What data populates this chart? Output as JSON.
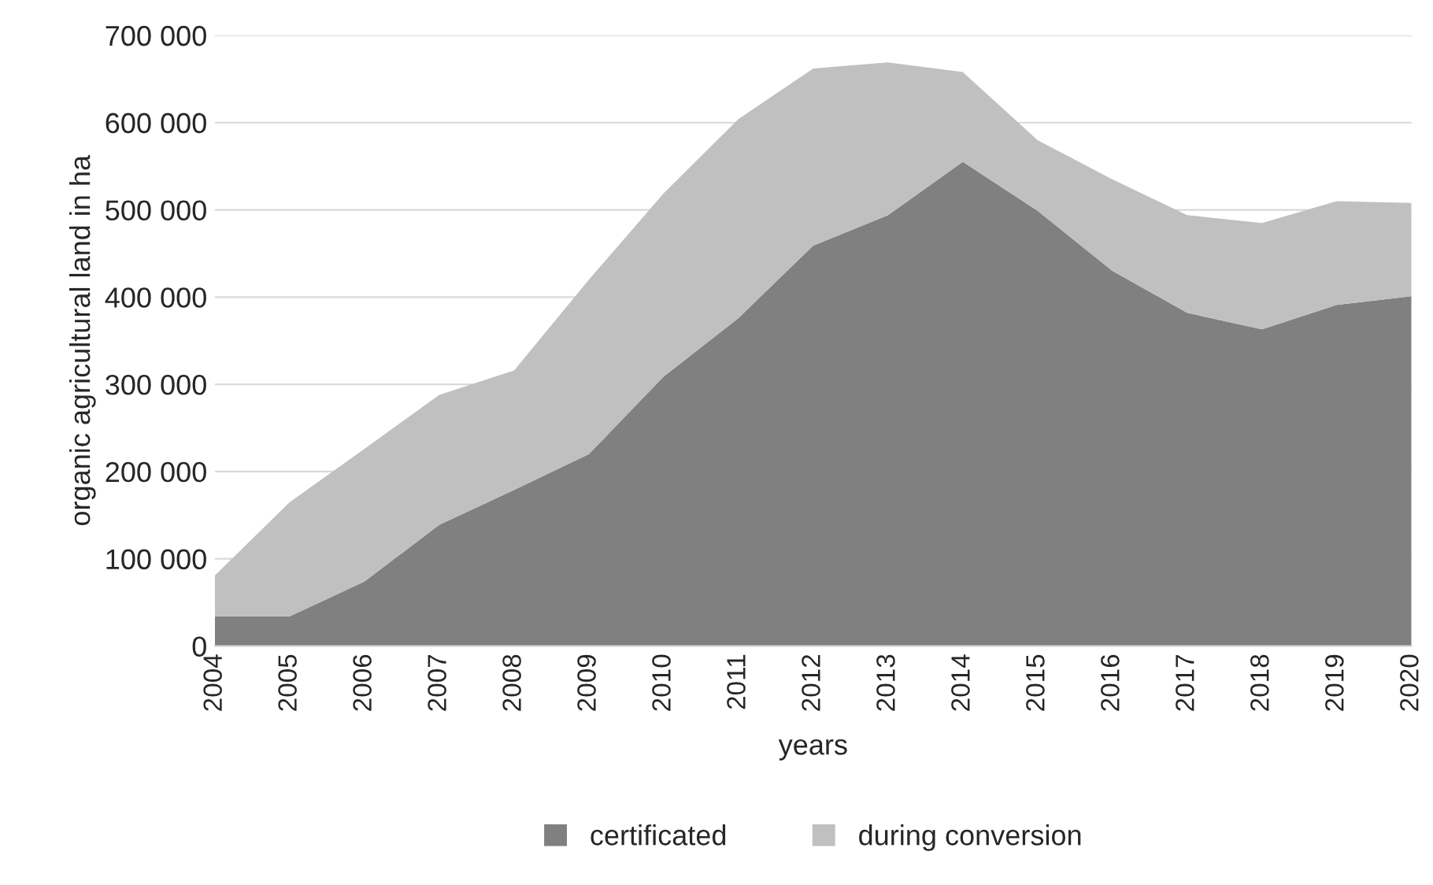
{
  "chart_data": {
    "type": "area",
    "stacked": true,
    "categories": [
      "2004",
      "2005",
      "2006",
      "2007",
      "2008",
      "2009",
      "2010",
      "2011",
      "2012",
      "2013",
      "2014",
      "2015",
      "2016",
      "2017",
      "2018",
      "2019",
      "2020"
    ],
    "series": [
      {
        "name": "certificated",
        "color": "#808080",
        "values": [
          34000,
          34000,
          74000,
          139000,
          179000,
          220000,
          309000,
          376000,
          459000,
          494000,
          555000,
          499000,
          430000,
          382000,
          363000,
          391000,
          401000
        ]
      },
      {
        "name": "during conversion",
        "color": "#c0c0c0",
        "values": [
          47000,
          131000,
          152000,
          149000,
          137000,
          200000,
          210000,
          228000,
          203000,
          175000,
          103000,
          81000,
          105000,
          112000,
          122000,
          119000,
          107000
        ]
      }
    ],
    "xlabel": "years",
    "ylabel": "organic agricultural land in ha",
    "ylim": [
      0,
      700000
    ],
    "yticks": [
      0,
      {
        "value": 100000,
        "label": "100 000"
      },
      {
        "value": 200000,
        "label": "200 000"
      },
      {
        "value": 300000,
        "label": "300 000"
      },
      {
        "value": 400000,
        "label": "400 000"
      },
      {
        "value": 500000,
        "label": "500 000"
      },
      {
        "value": 600000,
        "label": "600 000"
      },
      {
        "value": 700000,
        "label": "700 000"
      }
    ],
    "grid": "y",
    "legend": "bottom"
  }
}
